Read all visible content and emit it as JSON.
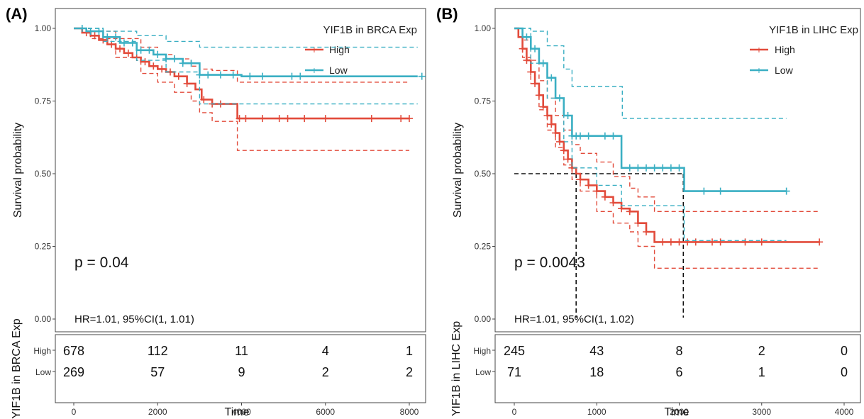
{
  "panels": [
    {
      "panel_label": "(A)",
      "legend_title": "YIF1B in BRCA Exp",
      "ylabel": "Survival probability",
      "xlabel": "Time",
      "pvalue_text": "p = 0.04",
      "hr_text": "HR=1.01, 95%CI(1, 1.01)",
      "risk_ylabel": "YIF1B in BRCA Exp",
      "risk_table": {
        "rows": [
          {
            "name": "High",
            "counts": [
              "678",
              "112",
              "11",
              "4",
              "1"
            ]
          },
          {
            "name": "Low",
            "counts": [
              "269",
              "57",
              "9",
              "2",
              "2"
            ]
          }
        ]
      }
    },
    {
      "panel_label": "(B)",
      "legend_title": "YIF1B in LIHC Exp",
      "ylabel": "Survival probability",
      "xlabel": "Time",
      "pvalue_text": "p = 0.0043",
      "hr_text": "HR=1.01, 95%CI(1, 1.02)",
      "risk_ylabel": "YIF1B in LIHC Exp",
      "risk_table": {
        "rows": [
          {
            "name": "High",
            "counts": [
              "245",
              "43",
              "8",
              "2",
              "0"
            ]
          },
          {
            "name": "Low",
            "counts": [
              "71",
              "18",
              "6",
              "1",
              "0"
            ]
          }
        ]
      }
    }
  ],
  "chart_data": [
    {
      "type": "line",
      "subtype": "kaplan-meier",
      "xlim": [
        0,
        8000
      ],
      "ylim": [
        0,
        1
      ],
      "xticks": [
        0,
        2000,
        4000,
        6000,
        8000
      ],
      "yticks": [
        0,
        0.25,
        0.5,
        0.75,
        1
      ],
      "ytick_labels": [
        "0.00",
        "0.25",
        "0.50",
        "0.75",
        "1.00"
      ],
      "legend_position": "top-right",
      "grid": false,
      "series": [
        {
          "name": "High",
          "color": "#E24B3B",
          "steps": [
            [
              0,
              1.0
            ],
            [
              200,
              0.985
            ],
            [
              400,
              0.975
            ],
            [
              600,
              0.96
            ],
            [
              800,
              0.945
            ],
            [
              1000,
              0.93
            ],
            [
              1200,
              0.915
            ],
            [
              1400,
              0.9
            ],
            [
              1600,
              0.885
            ],
            [
              1800,
              0.87
            ],
            [
              2000,
              0.86
            ],
            [
              2200,
              0.85
            ],
            [
              2400,
              0.835
            ],
            [
              2700,
              0.81
            ],
            [
              2900,
              0.79
            ],
            [
              3050,
              0.755
            ],
            [
              3300,
              0.74
            ],
            [
              3900,
              0.69
            ],
            [
              8000,
              0.69
            ]
          ],
          "upper": [
            [
              0,
              1.0
            ],
            [
              400,
              0.99
            ],
            [
              1000,
              0.965
            ],
            [
              1600,
              0.935
            ],
            [
              2000,
              0.91
            ],
            [
              2400,
              0.895
            ],
            [
              2800,
              0.87
            ],
            [
              3000,
              0.86
            ],
            [
              3300,
              0.855
            ],
            [
              3900,
              0.815
            ],
            [
              8000,
              0.815
            ]
          ],
          "lower": [
            [
              0,
              1.0
            ],
            [
              400,
              0.965
            ],
            [
              1000,
              0.9
            ],
            [
              1600,
              0.845
            ],
            [
              2000,
              0.815
            ],
            [
              2400,
              0.78
            ],
            [
              2800,
              0.75
            ],
            [
              3000,
              0.71
            ],
            [
              3300,
              0.68
            ],
            [
              3900,
              0.58
            ],
            [
              8000,
              0.58
            ]
          ],
          "censor": [
            300,
            500,
            700,
            900,
            1100,
            1300,
            1500,
            1700,
            1900,
            2100,
            2300,
            2500,
            2700,
            3100,
            3300,
            3500,
            3950,
            4100,
            4500,
            4900,
            5100,
            5500,
            6000,
            7100,
            7800,
            8000
          ]
        },
        {
          "name": "Low",
          "color": "#3AAFC3",
          "steps": [
            [
              0,
              1.0
            ],
            [
              300,
              0.99
            ],
            [
              700,
              0.97
            ],
            [
              1100,
              0.95
            ],
            [
              1500,
              0.925
            ],
            [
              1900,
              0.91
            ],
            [
              2200,
              0.895
            ],
            [
              2600,
              0.88
            ],
            [
              3000,
              0.84
            ],
            [
              3700,
              0.84
            ],
            [
              4000,
              0.835
            ],
            [
              8200,
              0.835
            ]
          ],
          "upper": [
            [
              0,
              1.0
            ],
            [
              700,
              0.99
            ],
            [
              1500,
              0.975
            ],
            [
              2200,
              0.955
            ],
            [
              3000,
              0.935
            ],
            [
              8200,
              0.935
            ]
          ],
          "lower": [
            [
              0,
              1.0
            ],
            [
              700,
              0.955
            ],
            [
              1500,
              0.89
            ],
            [
              2200,
              0.85
            ],
            [
              3000,
              0.74
            ],
            [
              8200,
              0.74
            ]
          ],
          "censor": [
            200,
            400,
            600,
            800,
            1000,
            1200,
            1400,
            1600,
            1800,
            2000,
            2200,
            2400,
            2600,
            2800,
            3000,
            3200,
            3500,
            3800,
            4200,
            4500,
            5200,
            5400,
            8300
          ]
        }
      ]
    },
    {
      "type": "line",
      "subtype": "kaplan-meier",
      "xlim": [
        0,
        4000
      ],
      "ylim": [
        0,
        1
      ],
      "xticks": [
        0,
        1000,
        2000,
        3000,
        4000
      ],
      "yticks": [
        0,
        0.25,
        0.5,
        0.75,
        1
      ],
      "ytick_labels": [
        "0.00",
        "0.25",
        "0.50",
        "0.75",
        "1.00"
      ],
      "legend_position": "top-right",
      "grid": false,
      "median_lines": [
        {
          "series": "High",
          "x": 750,
          "y": 0.5
        },
        {
          "series": "Low",
          "x": 2050,
          "y": 0.5
        }
      ],
      "series": [
        {
          "name": "High",
          "color": "#E24B3B",
          "steps": [
            [
              0,
              1.0
            ],
            [
              50,
              0.97
            ],
            [
              100,
              0.93
            ],
            [
              150,
              0.89
            ],
            [
              200,
              0.85
            ],
            [
              250,
              0.81
            ],
            [
              300,
              0.77
            ],
            [
              350,
              0.73
            ],
            [
              400,
              0.7
            ],
            [
              450,
              0.67
            ],
            [
              500,
              0.64
            ],
            [
              550,
              0.61
            ],
            [
              600,
              0.58
            ],
            [
              650,
              0.55
            ],
            [
              700,
              0.52
            ],
            [
              750,
              0.5
            ],
            [
              800,
              0.48
            ],
            [
              900,
              0.46
            ],
            [
              1000,
              0.44
            ],
            [
              1100,
              0.42
            ],
            [
              1200,
              0.4
            ],
            [
              1300,
              0.38
            ],
            [
              1400,
              0.37
            ],
            [
              1500,
              0.33
            ],
            [
              1600,
              0.3
            ],
            [
              1700,
              0.265
            ],
            [
              3700,
              0.265
            ]
          ],
          "upper": [
            [
              0,
              1.0
            ],
            [
              100,
              0.96
            ],
            [
              200,
              0.89
            ],
            [
              300,
              0.82
            ],
            [
              400,
              0.76
            ],
            [
              500,
              0.7
            ],
            [
              600,
              0.65
            ],
            [
              700,
              0.6
            ],
            [
              800,
              0.57
            ],
            [
              1000,
              0.54
            ],
            [
              1200,
              0.49
            ],
            [
              1400,
              0.45
            ],
            [
              1500,
              0.42
            ],
            [
              1700,
              0.37
            ],
            [
              3700,
              0.37
            ]
          ],
          "lower": [
            [
              0,
              1.0
            ],
            [
              100,
              0.9
            ],
            [
              200,
              0.81
            ],
            [
              300,
              0.72
            ],
            [
              400,
              0.65
            ],
            [
              500,
              0.59
            ],
            [
              600,
              0.53
            ],
            [
              700,
              0.48
            ],
            [
              800,
              0.44
            ],
            [
              1000,
              0.37
            ],
            [
              1200,
              0.33
            ],
            [
              1400,
              0.3
            ],
            [
              1500,
              0.25
            ],
            [
              1700,
              0.175
            ],
            [
              3700,
              0.175
            ]
          ],
          "censor": [
            100,
            150,
            200,
            250,
            300,
            350,
            400,
            450,
            500,
            550,
            600,
            650,
            700,
            800,
            900,
            1000,
            1100,
            1200,
            1300,
            1400,
            1500,
            1600,
            1800,
            1900,
            2000,
            2100,
            2200,
            2400,
            2500,
            2800,
            3000,
            3700
          ]
        },
        {
          "name": "Low",
          "color": "#3AAFC3",
          "steps": [
            [
              0,
              1.0
            ],
            [
              100,
              0.97
            ],
            [
              200,
              0.93
            ],
            [
              300,
              0.88
            ],
            [
              400,
              0.83
            ],
            [
              500,
              0.76
            ],
            [
              600,
              0.7
            ],
            [
              700,
              0.63
            ],
            [
              1000,
              0.63
            ],
            [
              1300,
              0.52
            ],
            [
              2050,
              0.52
            ],
            [
              2060,
              0.44
            ],
            [
              3300,
              0.44
            ]
          ],
          "upper": [
            [
              0,
              1.0
            ],
            [
              200,
              0.99
            ],
            [
              400,
              0.94
            ],
            [
              600,
              0.86
            ],
            [
              700,
              0.8
            ],
            [
              1300,
              0.8
            ],
            [
              1310,
              0.69
            ],
            [
              3300,
              0.69
            ]
          ],
          "lower": [
            [
              0,
              1.0
            ],
            [
              200,
              0.88
            ],
            [
              400,
              0.76
            ],
            [
              600,
              0.61
            ],
            [
              700,
              0.52
            ],
            [
              1000,
              0.46
            ],
            [
              1300,
              0.39
            ],
            [
              2050,
              0.39
            ],
            [
              2060,
              0.27
            ],
            [
              3300,
              0.27
            ]
          ],
          "censor": [
            150,
            250,
            350,
            450,
            550,
            650,
            700,
            750,
            800,
            900,
            1100,
            1200,
            1400,
            1500,
            1600,
            1700,
            1800,
            1900,
            2000,
            2300,
            2500,
            3300
          ]
        }
      ]
    }
  ]
}
